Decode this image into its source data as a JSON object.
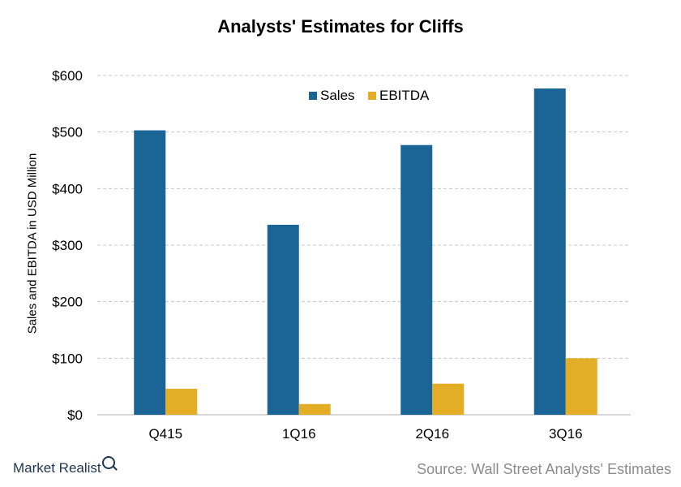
{
  "chart_data": {
    "type": "bar",
    "title": "Analysts' Estimates for Cliffs",
    "xlabel": "",
    "ylabel": "Sales and EBITDA in USD Million",
    "categories": [
      "Q415",
      "1Q16",
      "2Q16",
      "3Q16"
    ],
    "series": [
      {
        "name": "Sales",
        "color": "#1a6496",
        "values": [
          503,
          336,
          477,
          577
        ]
      },
      {
        "name": "EBITDA",
        "color": "#e3ad26",
        "values": [
          46,
          19,
          55,
          100
        ]
      }
    ],
    "ylim": [
      0,
      600
    ],
    "yticks": [
      0,
      100,
      200,
      300,
      400,
      500,
      600
    ],
    "ytick_labels": [
      "$0",
      "$100",
      "$200",
      "$300",
      "$400",
      "$500",
      "$600"
    ],
    "grid": true,
    "legend_position": "top-center"
  },
  "footer": {
    "brand": "Market Realist",
    "source": "Source: Wall Street Analysts' Estimates"
  }
}
